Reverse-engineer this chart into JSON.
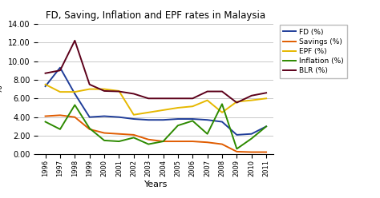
{
  "years": [
    1996,
    1997,
    1998,
    1999,
    2000,
    2001,
    2002,
    2003,
    2004,
    2005,
    2006,
    2007,
    2008,
    2009,
    2010,
    2011
  ],
  "FD": [
    7.3,
    9.3,
    6.5,
    4.0,
    4.1,
    4.0,
    3.8,
    3.7,
    3.7,
    3.8,
    3.8,
    3.7,
    3.5,
    2.1,
    2.2,
    3.0
  ],
  "Savings": [
    4.1,
    4.2,
    4.0,
    2.7,
    2.3,
    2.2,
    2.1,
    1.6,
    1.4,
    1.4,
    1.4,
    1.3,
    1.1,
    0.3,
    0.25,
    0.25
  ],
  "EPF": [
    7.5,
    6.7,
    6.7,
    7.0,
    7.0,
    6.8,
    4.25,
    4.5,
    4.75,
    5.0,
    5.15,
    5.8,
    4.5,
    5.65,
    5.8,
    6.0
  ],
  "Inflation": [
    3.5,
    2.7,
    5.3,
    2.8,
    1.5,
    1.4,
    1.8,
    1.1,
    1.4,
    3.1,
    3.6,
    2.2,
    5.4,
    0.6,
    1.7,
    3.0
  ],
  "BLR": [
    8.7,
    9.0,
    12.2,
    7.5,
    6.8,
    6.75,
    6.5,
    6.0,
    6.0,
    6.0,
    6.0,
    6.75,
    6.75,
    5.55,
    6.3,
    6.6
  ],
  "title": "FD, Saving, Inflation and EPF rates in Malaysia",
  "xlabel": "Years",
  "ylabel": "%",
  "ylim": [
    0.0,
    14.0
  ],
  "yticks": [
    0.0,
    2.0,
    4.0,
    6.0,
    8.0,
    10.0,
    12.0,
    14.0
  ],
  "colors": {
    "FD": "#1f3d99",
    "Savings": "#e05c00",
    "EPF": "#e6b800",
    "Inflation": "#2d8a00",
    "BLR": "#5c001a"
  },
  "legend_labels": [
    "FD (%)",
    "Savings (%)",
    "EPF (%)",
    "Inflation (%)",
    "BLR (%)"
  ],
  "bg_color": "#ffffff",
  "grid_color": "#c0c0c0"
}
